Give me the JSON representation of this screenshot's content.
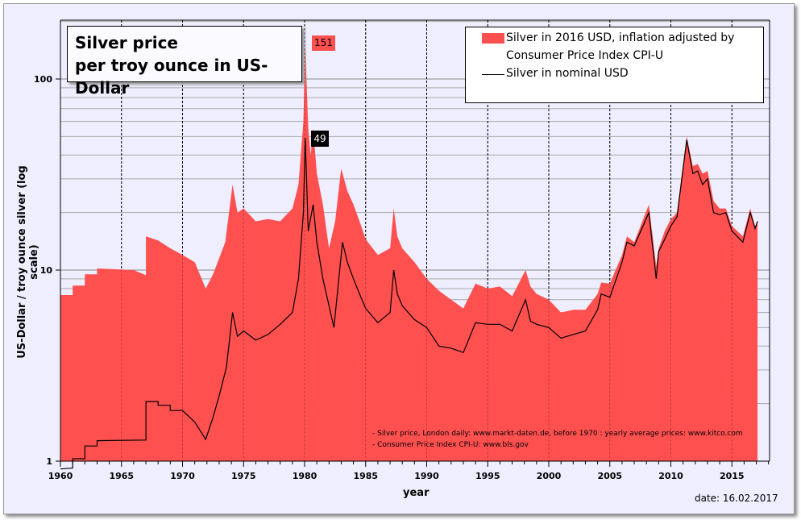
{
  "chart_data": {
    "type": "area",
    "title": "Silver price\nper troy ounce in US-Dollar",
    "title_lines": [
      "Silver price",
      "per troy ounce in US-Dollar"
    ],
    "xlabel": "year",
    "ylabel": "US-Dollar / troy ounce silver (log scale)",
    "xlim": [
      1960,
      2018
    ],
    "ylim": [
      1,
      200
    ],
    "yscale": "log",
    "x_ticks": [
      "1960",
      "1965",
      "1970",
      "1975",
      "1980",
      "1985",
      "1990",
      "1995",
      "2000",
      "2005",
      "2010",
      "2015"
    ],
    "y_ticks": [
      "1",
      "10",
      "100"
    ],
    "grid": true,
    "legend_position": "top-right",
    "legend": [
      "Silver in 2016 USD, inflation adjusted by",
      "Consumer Price Index CPI-U",
      "Silver in nominal USD"
    ],
    "annotations": [
      {
        "label": "151",
        "x": 1980.05,
        "y": 151,
        "color": "#ff5050"
      },
      {
        "label": "49",
        "x": 1980.05,
        "y": 49,
        "color": "#000000"
      }
    ],
    "sources": [
      "- Silver price, London daily: www.markt-daten.de,  before 1970 :  yearly  average prices: www.kitco.com",
      "- Consumer Price Index CPI-U: www.bls.gov"
    ],
    "date": "date: 16.02.2017",
    "series": [
      {
        "name": "Silver in 2016 USD, inflation adjusted by Consumer Price Index CPI-U",
        "color": "#ff5050",
        "type": "area",
        "points": [
          [
            1960,
            7.4
          ],
          [
            1961,
            7.4
          ],
          [
            1961,
            8.3
          ],
          [
            1962,
            8.3
          ],
          [
            1962,
            9.5
          ],
          [
            1963,
            9.5
          ],
          [
            1963,
            10.2
          ],
          [
            1966,
            10
          ],
          [
            1967,
            9.4
          ],
          [
            1967,
            15
          ],
          [
            1968,
            14.3
          ],
          [
            1969,
            13
          ],
          [
            1970,
            12
          ],
          [
            1971,
            11
          ],
          [
            1971.9,
            8
          ],
          [
            1972.5,
            9.5
          ],
          [
            1973.5,
            14
          ],
          [
            1974.1,
            28
          ],
          [
            1974.5,
            20
          ],
          [
            1975,
            21
          ],
          [
            1976,
            18
          ],
          [
            1977,
            18.5
          ],
          [
            1978,
            18
          ],
          [
            1979,
            21
          ],
          [
            1979.5,
            28
          ],
          [
            1979.9,
            60
          ],
          [
            1980.05,
            151
          ],
          [
            1980.3,
            55
          ],
          [
            1980.5,
            40
          ],
          [
            1980.7,
            55
          ],
          [
            1981,
            32
          ],
          [
            1981.5,
            22
          ],
          [
            1982,
            13
          ],
          [
            1982.5,
            18
          ],
          [
            1983,
            34
          ],
          [
            1983.5,
            26
          ],
          [
            1984,
            22
          ],
          [
            1984.5,
            18
          ],
          [
            1985,
            14.5
          ],
          [
            1986,
            12
          ],
          [
            1987,
            13
          ],
          [
            1987.3,
            21
          ],
          [
            1987.6,
            15
          ],
          [
            1988,
            13
          ],
          [
            1989,
            11
          ],
          [
            1990,
            9
          ],
          [
            1991,
            7.8
          ],
          [
            1992,
            7
          ],
          [
            1993,
            6.3
          ],
          [
            1994,
            8.5
          ],
          [
            1995,
            8
          ],
          [
            1996,
            8.2
          ],
          [
            1997,
            7.3
          ],
          [
            1998.1,
            10
          ],
          [
            1998.5,
            8.2
          ],
          [
            1999,
            7.5
          ],
          [
            2000,
            7
          ],
          [
            2001,
            6
          ],
          [
            2002,
            6.2
          ],
          [
            2003,
            6.2
          ],
          [
            2004,
            7.5
          ],
          [
            2004.3,
            8.6
          ],
          [
            2005,
            8.5
          ],
          [
            2006,
            12
          ],
          [
            2006.4,
            15
          ],
          [
            2007,
            14
          ],
          [
            2008.2,
            22
          ],
          [
            2008.8,
            10.5
          ],
          [
            2009,
            13
          ],
          [
            2009.5,
            16
          ],
          [
            2010,
            18.5
          ],
          [
            2010.5,
            20
          ],
          [
            2010.9,
            32
          ],
          [
            2011.3,
            50
          ],
          [
            2011.8,
            35
          ],
          [
            2012.2,
            36
          ],
          [
            2012.6,
            32
          ],
          [
            2013,
            33
          ],
          [
            2013.5,
            23
          ],
          [
            2014,
            21
          ],
          [
            2014.5,
            21
          ],
          [
            2015,
            17
          ],
          [
            2015.9,
            15
          ],
          [
            2016.5,
            21
          ],
          [
            2016.9,
            17
          ],
          [
            2017.1,
            18
          ]
        ]
      },
      {
        "name": "Silver in nominal USD",
        "color": "#000000",
        "type": "line",
        "points": [
          [
            1960,
            0.91
          ],
          [
            1961,
            0.92
          ],
          [
            1961,
            1.03
          ],
          [
            1962,
            1.03
          ],
          [
            1962,
            1.2
          ],
          [
            1963,
            1.2
          ],
          [
            1963,
            1.28
          ],
          [
            1967,
            1.29
          ],
          [
            1967,
            2.05
          ],
          [
            1968,
            2.05
          ],
          [
            1968,
            1.96
          ],
          [
            1969,
            1.96
          ],
          [
            1969,
            1.84
          ],
          [
            1970,
            1.84
          ],
          [
            1971,
            1.6
          ],
          [
            1971.9,
            1.3
          ],
          [
            1972.5,
            1.7
          ],
          [
            1973,
            2.2
          ],
          [
            1973.6,
            3.1
          ],
          [
            1974.1,
            6
          ],
          [
            1974.5,
            4.5
          ],
          [
            1975,
            4.8
          ],
          [
            1976,
            4.3
          ],
          [
            1977,
            4.6
          ],
          [
            1978,
            5.2
          ],
          [
            1979,
            6
          ],
          [
            1979.5,
            9
          ],
          [
            1979.9,
            20
          ],
          [
            1980.05,
            49
          ],
          [
            1980.3,
            16
          ],
          [
            1980.7,
            22
          ],
          [
            1981,
            14
          ],
          [
            1981.5,
            9
          ],
          [
            1982.4,
            5
          ],
          [
            1983.1,
            14
          ],
          [
            1983.5,
            11
          ],
          [
            1984,
            9
          ],
          [
            1984.5,
            7.5
          ],
          [
            1985,
            6.3
          ],
          [
            1986,
            5.3
          ],
          [
            1987,
            6
          ],
          [
            1987.3,
            10
          ],
          [
            1987.6,
            7.5
          ],
          [
            1988,
            6.5
          ],
          [
            1989,
            5.5
          ],
          [
            1990,
            5
          ],
          [
            1991,
            4
          ],
          [
            1992,
            3.9
          ],
          [
            1993,
            3.7
          ],
          [
            1994,
            5.3
          ],
          [
            1995,
            5.2
          ],
          [
            1996,
            5.2
          ],
          [
            1997,
            4.8
          ],
          [
            1998.1,
            7
          ],
          [
            1998.5,
            5.4
          ],
          [
            1999,
            5.2
          ],
          [
            2000,
            5.0
          ],
          [
            2001,
            4.4
          ],
          [
            2002,
            4.6
          ],
          [
            2003,
            4.8
          ],
          [
            2004,
            6.2
          ],
          [
            2004.3,
            7.5
          ],
          [
            2005,
            7.2
          ],
          [
            2006,
            11
          ],
          [
            2006.4,
            14
          ],
          [
            2007,
            13.4
          ],
          [
            2008.2,
            20
          ],
          [
            2008.8,
            9
          ],
          [
            2009,
            12.5
          ],
          [
            2009.5,
            14.5
          ],
          [
            2010,
            17
          ],
          [
            2010.5,
            19
          ],
          [
            2010.9,
            30
          ],
          [
            2011.3,
            48
          ],
          [
            2011.8,
            32
          ],
          [
            2012.2,
            33
          ],
          [
            2012.6,
            28
          ],
          [
            2013,
            30
          ],
          [
            2013.5,
            20
          ],
          [
            2014,
            19.5
          ],
          [
            2014.5,
            20
          ],
          [
            2015,
            16
          ],
          [
            2015.9,
            14
          ],
          [
            2016.5,
            20
          ],
          [
            2016.9,
            16.5
          ],
          [
            2017.1,
            18
          ]
        ]
      }
    ]
  }
}
